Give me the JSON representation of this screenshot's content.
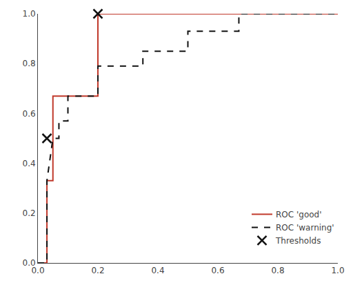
{
  "chart_data": {
    "type": "line",
    "series": [
      {
        "name": "ROC 'good'",
        "color": "#c0392b",
        "line_style": "solid",
        "x": [
          0.0,
          0.03,
          0.03,
          0.05,
          0.05,
          0.2,
          0.2,
          1.0
        ],
        "values": [
          0.0,
          0.0,
          0.33,
          0.33,
          0.67,
          0.67,
          1.0,
          1.0
        ]
      },
      {
        "name": "ROC 'warning'",
        "color": "#111111",
        "line_style": "dashed",
        "x": [
          0.0,
          0.03,
          0.03,
          0.05,
          0.07,
          0.07,
          0.1,
          0.1,
          0.2,
          0.2,
          0.35,
          0.35,
          0.5,
          0.5,
          0.67,
          0.67,
          1.0
        ],
        "values": [
          0.0,
          0.0,
          0.33,
          0.5,
          0.5,
          0.57,
          0.57,
          0.67,
          0.67,
          0.79,
          0.79,
          0.85,
          0.85,
          0.93,
          0.93,
          1.0,
          1.0
        ]
      },
      {
        "name": "Thresholds",
        "type": "scatter",
        "marker": "x",
        "color": "#111111",
        "x": [
          0.03,
          0.2
        ],
        "values": [
          0.5,
          1.0
        ]
      }
    ],
    "xlim": [
      0.0,
      1.0
    ],
    "ylim": [
      0.0,
      1.0
    ],
    "xticks": [
      {
        "value": 0,
        "label": "0.0"
      },
      0.2,
      0.4,
      0.6,
      0.8,
      {
        "value": 1,
        "label": "1.0"
      }
    ],
    "yticks": [
      {
        "value": 0,
        "label": "0.0"
      },
      0.2,
      0.4,
      0.6,
      0.8,
      {
        "value": 1,
        "label": "1.0"
      }
    ],
    "grid": false,
    "legend": "lower right"
  }
}
